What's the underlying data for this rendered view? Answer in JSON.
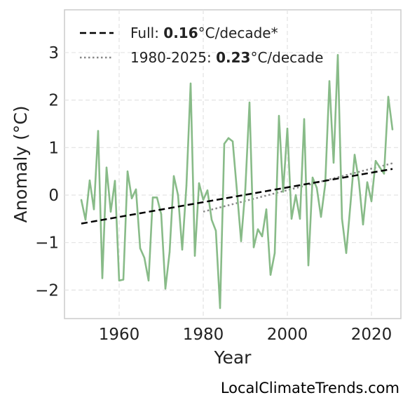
{
  "chart_data": {
    "type": "line",
    "xlabel": "Year",
    "ylabel": "Anomaly (°C)",
    "xlim": [
      1947,
      2027
    ],
    "ylim": [
      -2.6,
      3.9
    ],
    "xticks": [
      1960,
      1980,
      2000,
      2020
    ],
    "yticks": [
      -2,
      -1,
      0,
      1,
      2,
      3
    ],
    "ytick_labels": [
      "−2",
      "−1",
      "0",
      "1",
      "2",
      "3"
    ],
    "grid": true,
    "legend_position": "top-left",
    "colors": {
      "series": "#88bb88",
      "trend_full": "#000000",
      "trend_recent": "#888888"
    },
    "series": [
      {
        "x": [
          1951,
          1952,
          1953,
          1954,
          1955,
          1956,
          1957,
          1958,
          1959,
          1960,
          1961,
          1962,
          1963,
          1964,
          1965,
          1966,
          1967,
          1968,
          1969,
          1970,
          1971,
          1972,
          1973,
          1974,
          1975,
          1976,
          1977,
          1978,
          1979,
          1980,
          1981,
          1982,
          1983,
          1984,
          1985,
          1986,
          1987,
          1988,
          1989,
          1990,
          1991,
          1992,
          1993,
          1994,
          1995,
          1996,
          1997,
          1998,
          1999,
          2000,
          2001,
          2002,
          2003,
          2004,
          2005,
          2006,
          2007,
          2008,
          2009,
          2010,
          2011,
          2012,
          2013,
          2014,
          2015,
          2016,
          2017,
          2018,
          2019,
          2020,
          2021,
          2022,
          2023,
          2024,
          2025
        ],
        "values": [
          -0.1,
          -0.52,
          0.31,
          -0.3,
          1.35,
          -1.75,
          0.58,
          -0.35,
          0.3,
          -1.8,
          -1.78,
          0.5,
          -0.07,
          0.12,
          -1.12,
          -1.32,
          -1.8,
          -0.05,
          -0.05,
          -0.4,
          -1.97,
          -1.2,
          0.4,
          0.0,
          -1.15,
          0.2,
          2.35,
          -1.28,
          0.25,
          -0.1,
          0.1,
          -0.52,
          -0.75,
          -2.38,
          1.08,
          1.2,
          1.13,
          0.1,
          -0.97,
          0.12,
          1.95,
          -1.1,
          -0.72,
          -0.87,
          -0.3,
          -1.68,
          -1.22,
          1.67,
          0.07,
          1.4,
          -0.5,
          0.0,
          -0.5,
          1.6,
          -1.48,
          0.37,
          0.15,
          -0.46,
          0.22,
          2.4,
          0.68,
          2.95,
          -0.5,
          -1.22,
          -0.2,
          0.85,
          0.3,
          -0.62,
          0.27,
          -0.13,
          0.72,
          0.58,
          0.45,
          2.07,
          1.38
        ]
      }
    ],
    "trends": [
      {
        "label_prefix": "Full: ",
        "label_value": "0.16",
        "label_suffix": "°C/decade*",
        "style": "dashed",
        "x": [
          1951,
          2025
        ],
        "y": [
          -0.6,
          0.55
        ]
      },
      {
        "label_prefix": "1980-2025: ",
        "label_value": "0.23",
        "label_suffix": "°C/decade",
        "style": "dotted",
        "x": [
          1980,
          2025
        ],
        "y": [
          -0.35,
          0.67
        ]
      }
    ]
  },
  "credit": "LocalClimateTrends.com"
}
